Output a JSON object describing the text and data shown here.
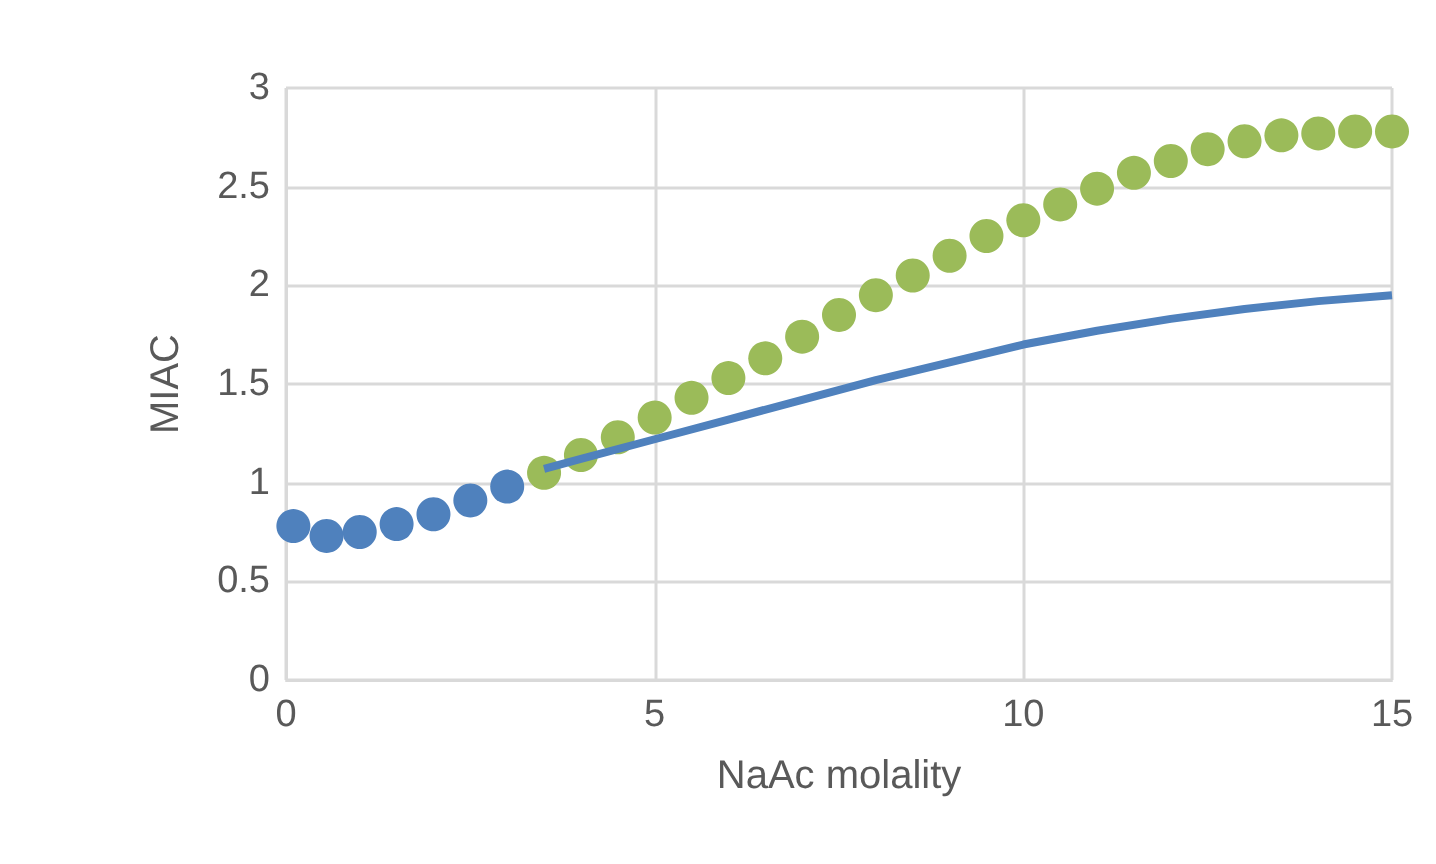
{
  "chart_data": {
    "type": "scatter",
    "xlabel": "NaAc molality",
    "ylabel": "MIAC",
    "xlim": [
      0,
      15
    ],
    "xticks": [
      0,
      5,
      10,
      15
    ],
    "ylim": [
      0,
      3
    ],
    "yticks": [
      0,
      0.5,
      1,
      1.5,
      2,
      2.5,
      3
    ],
    "grid": true,
    "marker": "circle",
    "series": [
      {
        "type": "line",
        "color": "#4f81bd",
        "marker": "none",
        "x": [
          3.5,
          4,
          5,
          6,
          7,
          8,
          9,
          10,
          11,
          12,
          13,
          14,
          15
        ],
        "values": [
          1.07,
          1.12,
          1.22,
          1.32,
          1.42,
          1.52,
          1.61,
          1.7,
          1.77,
          1.83,
          1.88,
          1.92,
          1.95
        ]
      },
      {
        "color": "#4f81bd",
        "x": [
          0.1,
          0.55,
          1,
          1.5,
          2,
          2.5,
          3
        ],
        "values": [
          0.78,
          0.73,
          0.75,
          0.79,
          0.84,
          0.91,
          0.98
        ]
      },
      {
        "color": "#9bbb59",
        "x": [
          3.5,
          4,
          4.5,
          5,
          5.5,
          6,
          6.5,
          7,
          7.5,
          8,
          8.5,
          9,
          9.5,
          10,
          10.5,
          11,
          11.5,
          12,
          12.5,
          13,
          13.5,
          14,
          14.5,
          15
        ],
        "values": [
          1.05,
          1.14,
          1.23,
          1.33,
          1.43,
          1.53,
          1.63,
          1.74,
          1.85,
          1.95,
          2.05,
          2.15,
          2.25,
          2.33,
          2.41,
          2.49,
          2.57,
          2.63,
          2.69,
          2.73,
          2.76,
          2.77,
          2.78,
          2.78
        ]
      }
    ]
  }
}
